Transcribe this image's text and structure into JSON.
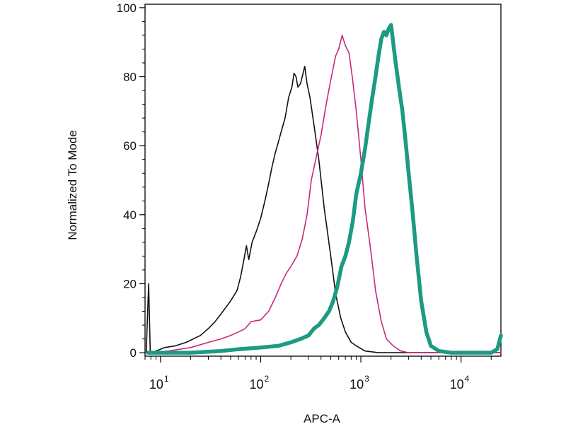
{
  "chart_data": {
    "type": "line",
    "title": "",
    "xlabel": "APC-A",
    "ylabel": "Normalized To Mode",
    "x_scale": "log",
    "xlim": [
      7,
      25000
    ],
    "ylim": [
      -1,
      101
    ],
    "x_ticks": [
      {
        "value": 10,
        "base": "10",
        "exp": "1"
      },
      {
        "value": 100,
        "base": "10",
        "exp": "2"
      },
      {
        "value": 1000,
        "base": "10",
        "exp": "3"
      },
      {
        "value": 10000,
        "base": "10",
        "exp": "4"
      }
    ],
    "y_ticks": [
      {
        "value": 0,
        "label": "0"
      },
      {
        "value": 20,
        "label": "20"
      },
      {
        "value": 40,
        "label": "40"
      },
      {
        "value": 60,
        "label": "60"
      },
      {
        "value": 80,
        "label": "80"
      },
      {
        "value": 100,
        "label": "100"
      }
    ],
    "grid": false,
    "legend": "none",
    "series": [
      {
        "color": "#111111",
        "width": 1.6,
        "points": [
          [
            7.2,
            0
          ],
          [
            7.6,
            20
          ],
          [
            7.9,
            0
          ],
          [
            9,
            0.5
          ],
          [
            11,
            1.5
          ],
          [
            14,
            2
          ],
          [
            18,
            3
          ],
          [
            25,
            5
          ],
          [
            30,
            7
          ],
          [
            35,
            9
          ],
          [
            42,
            12
          ],
          [
            50,
            15
          ],
          [
            58,
            18
          ],
          [
            63,
            22
          ],
          [
            68,
            27
          ],
          [
            72,
            31
          ],
          [
            76,
            27
          ],
          [
            82,
            32
          ],
          [
            90,
            35
          ],
          [
            100,
            39
          ],
          [
            110,
            44
          ],
          [
            120,
            49
          ],
          [
            130,
            54
          ],
          [
            140,
            58
          ],
          [
            150,
            61
          ],
          [
            160,
            64
          ],
          [
            175,
            68
          ],
          [
            190,
            74
          ],
          [
            205,
            77
          ],
          [
            215,
            81
          ],
          [
            225,
            80
          ],
          [
            235,
            77
          ],
          [
            250,
            78
          ],
          [
            265,
            81
          ],
          [
            275,
            83
          ],
          [
            290,
            78
          ],
          [
            310,
            74
          ],
          [
            340,
            66
          ],
          [
            380,
            56
          ],
          [
            430,
            42
          ],
          [
            500,
            28
          ],
          [
            560,
            17
          ],
          [
            630,
            10
          ],
          [
            700,
            6
          ],
          [
            800,
            3
          ],
          [
            900,
            2
          ],
          [
            1100,
            0.5
          ],
          [
            1500,
            0
          ],
          [
            25000,
            0
          ]
        ]
      },
      {
        "color": "#c8287d",
        "width": 1.6,
        "points": [
          [
            7.5,
            0
          ],
          [
            12,
            0.5
          ],
          [
            20,
            1.5
          ],
          [
            30,
            3
          ],
          [
            40,
            4
          ],
          [
            50,
            5
          ],
          [
            60,
            6
          ],
          [
            70,
            7
          ],
          [
            80,
            9
          ],
          [
            100,
            9.5
          ],
          [
            120,
            12
          ],
          [
            140,
            16
          ],
          [
            160,
            20
          ],
          [
            180,
            23
          ],
          [
            200,
            25
          ],
          [
            230,
            28
          ],
          [
            260,
            33
          ],
          [
            290,
            40
          ],
          [
            320,
            50
          ],
          [
            360,
            57
          ],
          [
            400,
            63
          ],
          [
            450,
            72
          ],
          [
            500,
            79
          ],
          [
            560,
            86
          ],
          [
            600,
            88
          ],
          [
            650,
            92
          ],
          [
            700,
            89
          ],
          [
            760,
            87
          ],
          [
            820,
            80
          ],
          [
            900,
            70
          ],
          [
            1000,
            56
          ],
          [
            1100,
            42
          ],
          [
            1250,
            30
          ],
          [
            1400,
            18
          ],
          [
            1600,
            9
          ],
          [
            1800,
            4
          ],
          [
            2100,
            2
          ],
          [
            2500,
            0.5
          ],
          [
            3000,
            0
          ],
          [
            25000,
            0
          ]
        ]
      },
      {
        "color": "#1d9a83",
        "width": 5.5,
        "points": [
          [
            7.5,
            0
          ],
          [
            20,
            0
          ],
          [
            40,
            0.5
          ],
          [
            60,
            1
          ],
          [
            100,
            1.5
          ],
          [
            150,
            2
          ],
          [
            200,
            3
          ],
          [
            250,
            4
          ],
          [
            300,
            5
          ],
          [
            340,
            7
          ],
          [
            380,
            8
          ],
          [
            430,
            10
          ],
          [
            480,
            12
          ],
          [
            530,
            15
          ],
          [
            580,
            19
          ],
          [
            640,
            25
          ],
          [
            700,
            28
          ],
          [
            760,
            32
          ],
          [
            830,
            38
          ],
          [
            900,
            46
          ],
          [
            1000,
            52
          ],
          [
            1100,
            59
          ],
          [
            1200,
            67
          ],
          [
            1300,
            74
          ],
          [
            1400,
            80
          ],
          [
            1500,
            86
          ],
          [
            1600,
            91
          ],
          [
            1700,
            93
          ],
          [
            1800,
            92
          ],
          [
            1900,
            94
          ],
          [
            2000,
            95
          ],
          [
            2100,
            90
          ],
          [
            2200,
            85
          ],
          [
            2400,
            77
          ],
          [
            2600,
            70
          ],
          [
            2800,
            61
          ],
          [
            3000,
            52
          ],
          [
            3300,
            40
          ],
          [
            3600,
            28
          ],
          [
            4000,
            15
          ],
          [
            4500,
            6
          ],
          [
            5000,
            2
          ],
          [
            6000,
            0.5
          ],
          [
            8000,
            0
          ],
          [
            20000,
            0
          ],
          [
            23000,
            1
          ],
          [
            25000,
            5
          ]
        ]
      }
    ]
  }
}
